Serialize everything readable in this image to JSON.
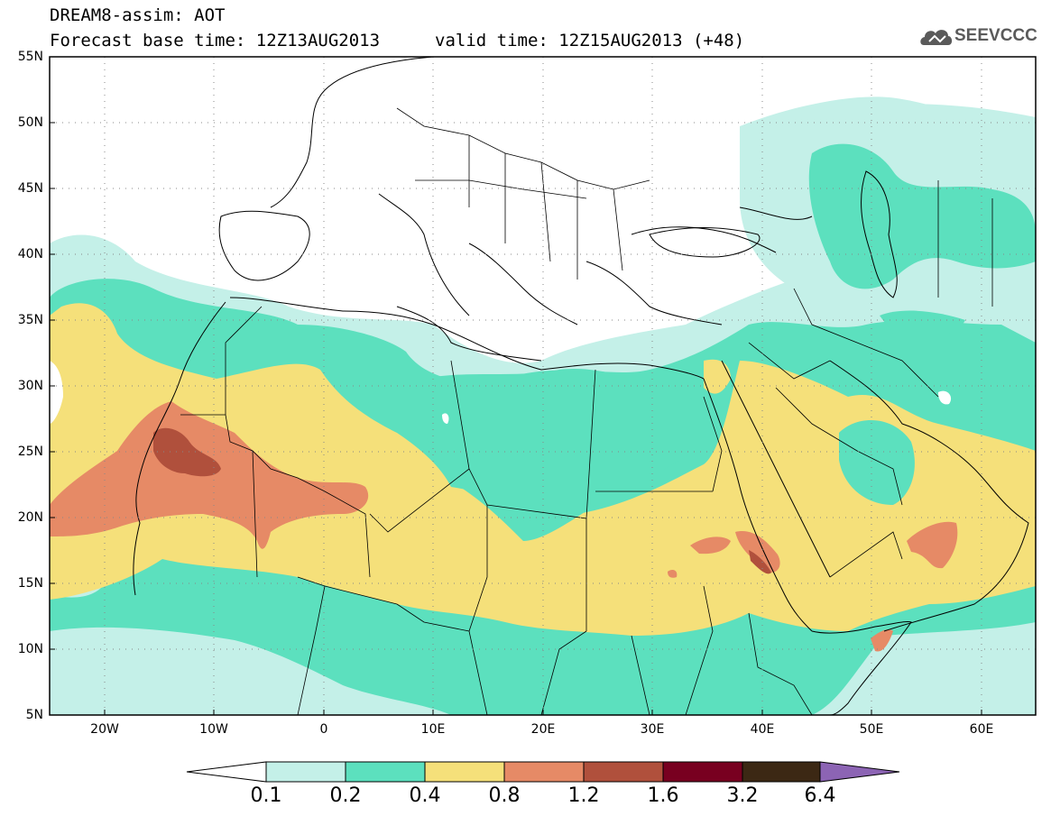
{
  "header": {
    "title": "DREAM8-assim: AOT",
    "base_time": "Forecast base time: 12Z13AUG2013",
    "valid_time": "valid time: 12Z15AUG2013 (+48)"
  },
  "logo": {
    "text": "SEEVCCC",
    "icon": "cloud-icon"
  },
  "map": {
    "variable": "AOT",
    "lat_labels": [
      "55N",
      "50N",
      "45N",
      "40N",
      "35N",
      "30N",
      "25N",
      "20N",
      "15N",
      "10N",
      "5N"
    ],
    "lon_labels": [
      "20W",
      "10W",
      "0",
      "10E",
      "20E",
      "30E",
      "40E",
      "50E",
      "60E"
    ],
    "grid": "dotted",
    "extent": {
      "lon": [
        -25,
        65
      ],
      "lat": [
        5,
        55
      ]
    }
  },
  "legend": {
    "levels": [
      "0.1",
      "0.2",
      "0.4",
      "0.8",
      "1.2",
      "1.6",
      "3.2",
      "6.4"
    ],
    "colors": [
      "#ffffff",
      "#c4f0e8",
      "#5ce0be",
      "#f5e07a",
      "#e68a66",
      "#b0503c",
      "#780020",
      "#3c2814",
      "#8c64b4"
    ]
  }
}
